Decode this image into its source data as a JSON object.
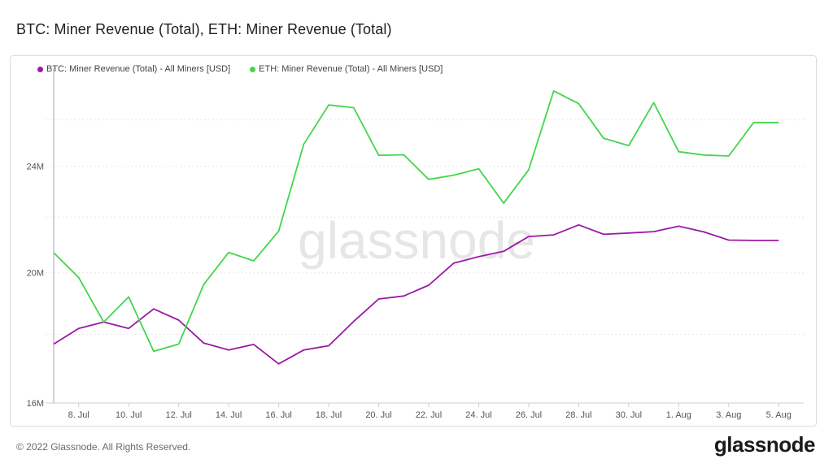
{
  "page": {
    "title": "BTC: Miner Revenue (Total), ETH: Miner Revenue (Total)",
    "copyright": "© 2022 Glassnode. All Rights Reserved.",
    "brand": "glassnode",
    "watermark": "glassnode"
  },
  "colors": {
    "btc": "#9b19a6",
    "eth": "#42d64b",
    "grid": "#e6e6e6",
    "axis_text": "#555555"
  },
  "chart_data": {
    "type": "line",
    "title": "BTC: Miner Revenue (Total), ETH: Miner Revenue (Total)",
    "y_scale": "log",
    "ylim": [
      16000000,
      28000000
    ],
    "y_ticks": [
      {
        "value": 16000000,
        "label": "16M"
      },
      {
        "value": 20000000,
        "label": "20M"
      },
      {
        "value": 24000000,
        "label": "24M"
      }
    ],
    "y_gridlines": [
      16000000,
      18000000,
      20000000,
      22000000,
      24000000,
      26000000
    ],
    "x_range": [
      "2022-07-07",
      "2022-08-06"
    ],
    "x_ticks": [
      {
        "date": "2022-07-08",
        "label": "8. Jul"
      },
      {
        "date": "2022-07-10",
        "label": "10. Jul"
      },
      {
        "date": "2022-07-12",
        "label": "12. Jul"
      },
      {
        "date": "2022-07-14",
        "label": "14. Jul"
      },
      {
        "date": "2022-07-16",
        "label": "16. Jul"
      },
      {
        "date": "2022-07-18",
        "label": "18. Jul"
      },
      {
        "date": "2022-07-20",
        "label": "20. Jul"
      },
      {
        "date": "2022-07-22",
        "label": "22. Jul"
      },
      {
        "date": "2022-07-24",
        "label": "24. Jul"
      },
      {
        "date": "2022-07-26",
        "label": "26. Jul"
      },
      {
        "date": "2022-07-28",
        "label": "28. Jul"
      },
      {
        "date": "2022-07-30",
        "label": "30. Jul"
      },
      {
        "date": "2022-08-01",
        "label": "1. Aug"
      },
      {
        "date": "2022-08-03",
        "label": "3. Aug"
      },
      {
        "date": "2022-08-05",
        "label": "5. Aug"
      }
    ],
    "dates": [
      "2022-07-07",
      "2022-07-08",
      "2022-07-09",
      "2022-07-10",
      "2022-07-11",
      "2022-07-12",
      "2022-07-13",
      "2022-07-14",
      "2022-07-15",
      "2022-07-16",
      "2022-07-17",
      "2022-07-18",
      "2022-07-19",
      "2022-07-20",
      "2022-07-21",
      "2022-07-22",
      "2022-07-23",
      "2022-07-24",
      "2022-07-25",
      "2022-07-26",
      "2022-07-27",
      "2022-07-28",
      "2022-07-29",
      "2022-07-30",
      "2022-07-31",
      "2022-08-01",
      "2022-08-02",
      "2022-08-03",
      "2022-08-04",
      "2022-08-05"
    ],
    "series": [
      {
        "name": "BTC: Miner Revenue (Total) - All Miners [USD]",
        "color_key": "btc",
        "values": [
          17700000,
          18180000,
          18380000,
          18180000,
          18800000,
          18440000,
          17730000,
          17520000,
          17690000,
          17110000,
          17520000,
          17650000,
          18400000,
          19120000,
          19220000,
          19580000,
          20330000,
          20560000,
          20750000,
          21280000,
          21340000,
          21710000,
          21360000,
          21410000,
          21460000,
          21660000,
          21450000,
          21150000,
          21140000,
          21140000
        ],
        "start_value": 17700000,
        "start_date_offset": 0.0
      },
      {
        "name": "ETH: Miner Revenue (Total) - All Miners [USD]",
        "color_key": "eth",
        "values": [
          20700000,
          19840000,
          18380000,
          19190000,
          17480000,
          17700000,
          19600000,
          20710000,
          20410000,
          21480000,
          24920000,
          26660000,
          26540000,
          24460000,
          24480000,
          23470000,
          23640000,
          23900000,
          22530000,
          23860000,
          27310000,
          26720000,
          25180000,
          24870000,
          26770000,
          24610000,
          24470000,
          24430000,
          25870000,
          25870000
        ]
      }
    ],
    "legend_position": "top-left",
    "grid": true
  }
}
